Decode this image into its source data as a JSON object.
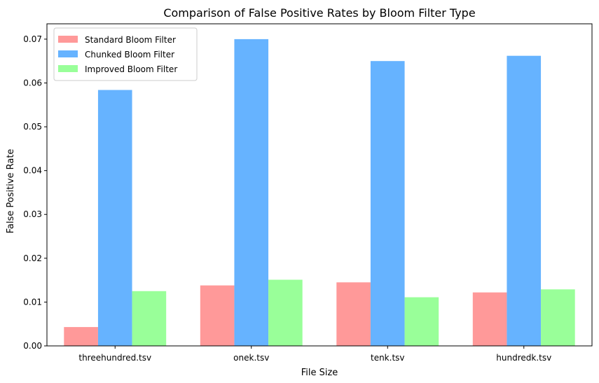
{
  "chart_data": {
    "type": "bar",
    "title": "Comparison of False Positive Rates by Bloom Filter Type",
    "xlabel": "File Size",
    "ylabel": "False Positive Rate",
    "categories": [
      "threehundred.tsv",
      "onek.tsv",
      "tenk.tsv",
      "hundredk.tsv"
    ],
    "ylim": [
      0,
      0.0735
    ],
    "yticks": [
      0.0,
      0.01,
      0.02,
      0.03,
      0.04,
      0.05,
      0.06,
      0.07
    ],
    "ytick_labels": [
      "0.00",
      "0.01",
      "0.02",
      "0.03",
      "0.04",
      "0.05",
      "0.06",
      "0.07"
    ],
    "grid": false,
    "legend": "top-left",
    "series": [
      {
        "name": "Standard Bloom Filter",
        "color": "#ff9999",
        "values": [
          0.0043,
          0.0138,
          0.0145,
          0.0122
        ]
      },
      {
        "name": "Chunked Bloom Filter",
        "color": "#66b3ff",
        "values": [
          0.0584,
          0.07,
          0.065,
          0.0662
        ]
      },
      {
        "name": "Improved Bloom Filter",
        "color": "#99ff99",
        "values": [
          0.0125,
          0.0151,
          0.0111,
          0.0129
        ]
      }
    ]
  }
}
